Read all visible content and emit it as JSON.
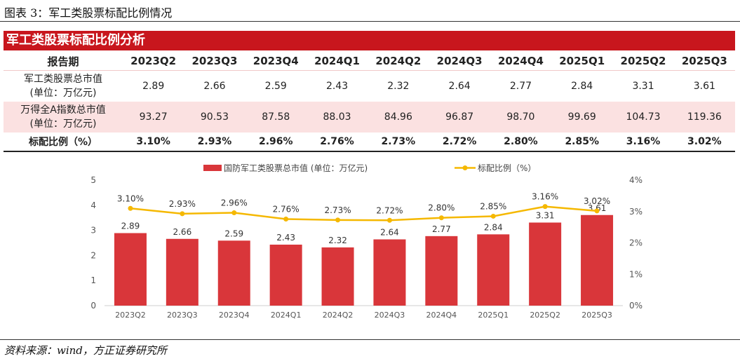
{
  "caption": "图表 3：军工类股票标配比例情况",
  "banner_title": "军工类股票标配比例分析",
  "table": {
    "header_label": "报告期",
    "periods": [
      "2023Q2",
      "2023Q3",
      "2023Q4",
      "2024Q1",
      "2024Q2",
      "2024Q3",
      "2024Q4",
      "2025Q1",
      "2025Q2",
      "2025Q3"
    ],
    "rows": [
      {
        "label_line1": "军工类股票总市值",
        "label_line2": "(单位：万亿元)",
        "values": [
          "2.89",
          "2.66",
          "2.59",
          "2.43",
          "2.32",
          "2.64",
          "2.77",
          "2.84",
          "3.31",
          "3.61"
        ]
      },
      {
        "label_line1": "万得全A指数总市值",
        "label_line2": "(单位：万亿元)",
        "values": [
          "93.27",
          "90.53",
          "87.58",
          "88.03",
          "84.96",
          "96.87",
          "98.70",
          "99.69",
          "104.73",
          "119.36"
        ]
      },
      {
        "label_line1": "标配比例（%）",
        "label_line2": "",
        "values": [
          "3.10%",
          "2.93%",
          "2.96%",
          "2.76%",
          "2.73%",
          "2.72%",
          "2.80%",
          "2.85%",
          "3.16%",
          "3.02%"
        ]
      }
    ]
  },
  "chart_data": {
    "type": "bar",
    "categories": [
      "2023Q2",
      "2023Q3",
      "2023Q4",
      "2024Q1",
      "2024Q2",
      "2024Q3",
      "2024Q4",
      "2025Q1",
      "2025Q2",
      "2025Q3"
    ],
    "series": [
      {
        "name": "国防军工类股票总市值 (单位：万亿元)",
        "type": "bar",
        "axis": "left",
        "values": [
          2.89,
          2.66,
          2.59,
          2.43,
          2.32,
          2.64,
          2.77,
          2.84,
          3.31,
          3.61
        ],
        "labels": [
          "2.89",
          "2.66",
          "2.59",
          "2.43",
          "2.32",
          "2.64",
          "2.77",
          "2.84",
          "3.31",
          "3.61"
        ],
        "color": "#d9363a"
      },
      {
        "name": "标配比例（%）",
        "type": "line",
        "axis": "right",
        "values": [
          3.1,
          2.93,
          2.96,
          2.76,
          2.73,
          2.72,
          2.8,
          2.85,
          3.16,
          3.02
        ],
        "labels": [
          "3.10%",
          "2.93%",
          "2.96%",
          "2.76%",
          "2.73%",
          "2.72%",
          "2.80%",
          "2.85%",
          "3.16%",
          "3.02%"
        ],
        "color": "#f5b800"
      }
    ],
    "ylim_left": [
      0,
      5
    ],
    "yticks_left": [
      "0",
      "1",
      "2",
      "3",
      "4",
      "5"
    ],
    "ylim_right": [
      0,
      4
    ],
    "yticks_right": [
      "0%",
      "1%",
      "2%",
      "3%",
      "4%"
    ],
    "legend_position": "top-center",
    "grid": false
  },
  "source": "资料来源：wind，方正证券研究所"
}
